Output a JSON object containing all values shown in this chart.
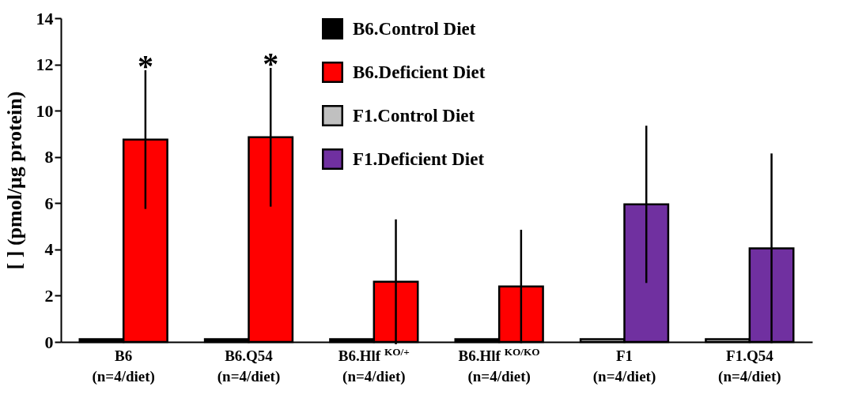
{
  "chart_data": {
    "type": "bar",
    "ylabel": "[  ] (pmol/μg protein)",
    "categories": [
      "B6\n(n=4/diet)",
      "B6.Q54\n(n=4/diet)",
      "B6.Hlf $^{KO/+}$\n(n=4/diet)",
      "B6.Hlf $^{KO/KO}$\n(n=4/diet)",
      "F1\n(n=4/diet)",
      "F1.Q54\n(n=4/diet)"
    ],
    "series": [
      {
        "name": "B6.Control Diet",
        "color": "#000000",
        "values": [
          0.12,
          0.12,
          0.12,
          0.12,
          null,
          null
        ]
      },
      {
        "name": "B6.Deficient Diet",
        "color": "#ff0000",
        "values": [
          8.75,
          8.85,
          2.6,
          2.4,
          null,
          null
        ],
        "errors": [
          3.0,
          3.0,
          2.7,
          2.45,
          null,
          null
        ]
      },
      {
        "name": "F1.Control Diet",
        "color": "#c0c0c0",
        "values": [
          null,
          null,
          null,
          null,
          0.12,
          0.12
        ]
      },
      {
        "name": "F1.Deficient Diet",
        "color": "#7030a0",
        "values": [
          null,
          null,
          null,
          null,
          5.95,
          4.05
        ],
        "errors": [
          null,
          null,
          null,
          null,
          3.4,
          4.1
        ]
      }
    ],
    "annotations": [
      "*",
      "*"
    ],
    "ylim": [
      0,
      14
    ],
    "yticks": [
      0,
      2,
      4,
      6,
      8,
      10,
      12,
      14
    ],
    "grid": false,
    "legend": "top"
  }
}
